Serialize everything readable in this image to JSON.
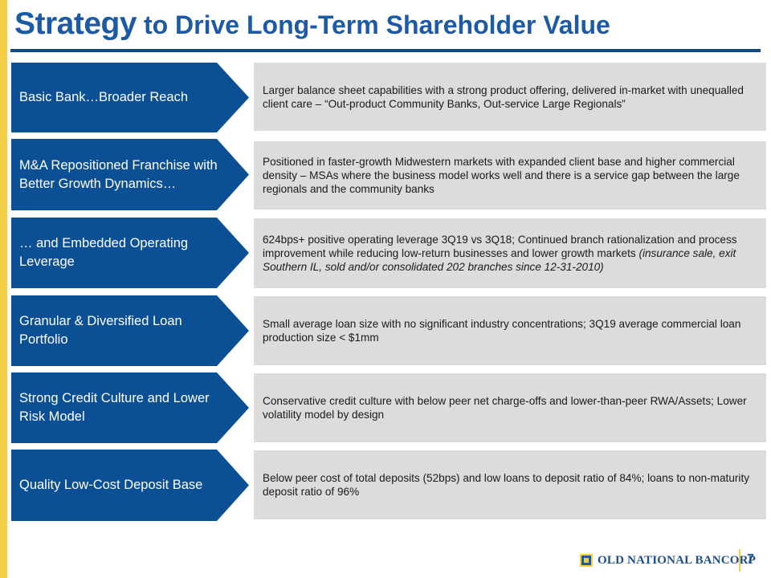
{
  "slide": {
    "title_strong": "Strategy",
    "title_rest": "to Drive Long-Term Shareholder Value",
    "page_number": "7"
  },
  "rows": [
    {
      "label": "Basic Bank…Broader Reach",
      "description": "Larger balance sheet capabilities with a strong product offering,  delivered in-market with unequalled client care – “Out-product  Community Banks, Out-service Large Regionals”"
    },
    {
      "label": "M&A Repositioned Franchise with Better Growth Dynamics…",
      "description": "Positioned in faster-growth Midwestern markets with expanded client base and higher commercial density – MSAs where the business model works well and there is a service gap between the large regionals and the community banks"
    },
    {
      "label": "… and Embedded Operating Leverage",
      "description": "624bps+ positive operating leverage 3Q19 vs 3Q18; Continued branch rationalization and process improvement while reducing low-return businesses and lower growth markets ",
      "description_italic": "(insurance sale, exit Southern IL, sold and/or consolidated 202 branches since 12-31-2010)"
    },
    {
      "label": "Granular & Diversified Loan Portfolio",
      "description": "Small average loan size with no significant industry concentrations;  3Q19 average commercial loan production size < $1mm"
    },
    {
      "label": "Strong Credit Culture and Lower Risk Model",
      "description": "Conservative credit culture with below peer net charge-offs and lower-than-peer RWA/Assets; Lower volatility model by design"
    },
    {
      "label": "Quality Low-Cost Deposit Base",
      "description": "Below peer cost of total deposits (52bps) and low loans to deposit ratio of 84%; loans to non-maturity  deposit ratio of 96%"
    }
  ],
  "footer": {
    "logo_text": "OLD NATIONAL BANCORP",
    "logo_icon": "old-national-logo-icon"
  },
  "colors": {
    "brand_blue": "#0b4f94",
    "title_blue": "#1c5aa6",
    "accent_yellow": "#f3cf45",
    "box_gray": "#dcdcdc"
  }
}
